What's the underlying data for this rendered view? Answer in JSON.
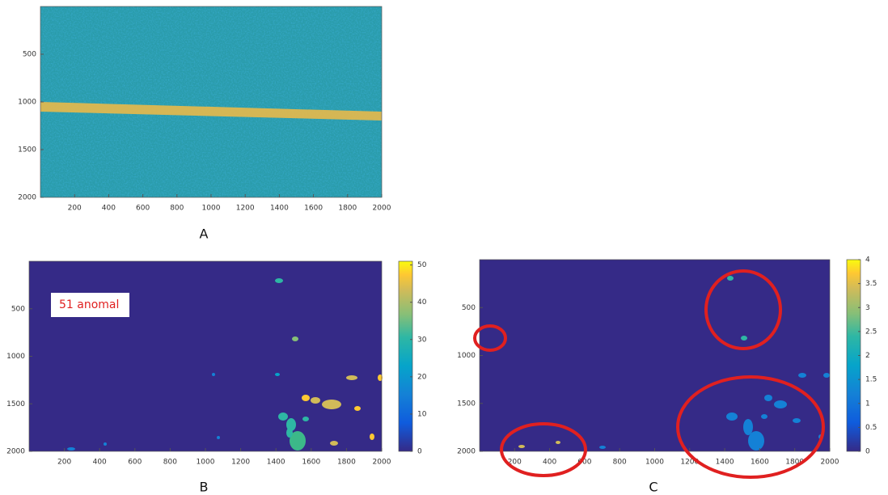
{
  "chart_data": [
    {
      "type": "heatmap",
      "caption": "A",
      "xlim": [
        0,
        2000
      ],
      "ylim": [
        2000,
        0
      ],
      "xticks": [
        200,
        400,
        600,
        800,
        1000,
        1200,
        1400,
        1600,
        1800,
        2000
      ],
      "yticks": [
        500,
        1000,
        1500,
        2000
      ]
    },
    {
      "type": "heatmap",
      "caption": "B",
      "annotation": "51 anomal",
      "xlim": [
        0,
        2000
      ],
      "ylim": [
        2000,
        0
      ],
      "xticks": [
        200,
        400,
        600,
        800,
        1000,
        1200,
        1400,
        1600,
        1800,
        2000
      ],
      "yticks": [
        500,
        1000,
        1500,
        2000
      ],
      "clim": [
        0,
        51
      ],
      "cticks": [
        0,
        10,
        20,
        30,
        40,
        50
      ]
    },
    {
      "type": "heatmap",
      "caption": "C",
      "xlim": [
        0,
        2000
      ],
      "ylim": [
        2000,
        0
      ],
      "xticks": [
        200,
        400,
        600,
        800,
        1000,
        1200,
        1400,
        1600,
        1800,
        2000
      ],
      "yticks": [
        500,
        1000,
        1500,
        2000
      ],
      "clim": [
        0,
        4
      ],
      "cticks": [
        0,
        0.5,
        1,
        1.5,
        2,
        2.5,
        3,
        3.5,
        4
      ]
    }
  ]
}
